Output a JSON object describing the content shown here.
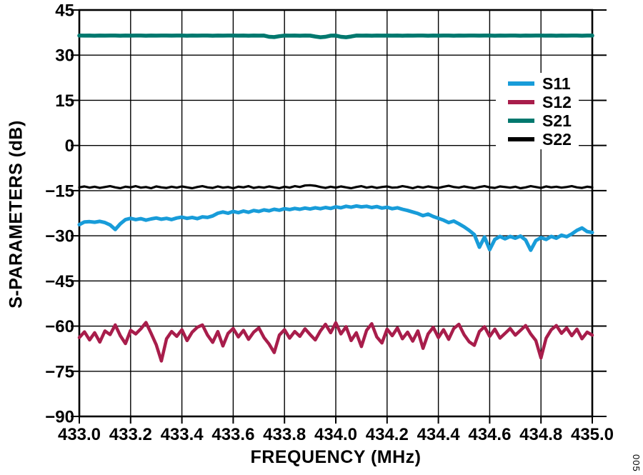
{
  "figure": {
    "code": "005",
    "background": "#ffffff",
    "foreground": "#000000"
  },
  "colors": {
    "s11": "#189cd9",
    "s12": "#a81d4b",
    "s21": "#00786e",
    "s22": "#000000",
    "grid": "#000000",
    "frame": "#000000"
  },
  "legend": {
    "position": "upper-right",
    "entries": [
      {
        "label": "S11",
        "color": "#189cd9"
      },
      {
        "label": "S12",
        "color": "#a81d4b"
      },
      {
        "label": "S21",
        "color": "#00786e"
      },
      {
        "label": "S22",
        "color": "#000000"
      }
    ]
  },
  "chart_data": {
    "type": "line",
    "title": "",
    "xlabel": "FREQUENCY (MHz)",
    "ylabel": "S-PARAMETERS (dB)",
    "xlim": [
      433.0,
      435.0
    ],
    "ylim": [
      -90,
      45
    ],
    "grid": true,
    "legend_position": "upper right",
    "x_ticks": [
      433.0,
      433.2,
      433.4,
      433.6,
      433.8,
      434.0,
      434.2,
      434.4,
      434.6,
      434.8,
      435.0
    ],
    "x_tick_labels": [
      "433.0",
      "433.2",
      "433.4",
      "433.6",
      "433.8",
      "434.0",
      "434.2",
      "434.4",
      "434.6",
      "434.8",
      "435.0"
    ],
    "y_ticks": [
      45,
      30,
      15,
      0,
      -15,
      -30,
      -45,
      -60,
      -75,
      -90
    ],
    "y_tick_labels": [
      "45",
      "30",
      "15",
      "0",
      "−15",
      "−30",
      "−45",
      "−60",
      "−75",
      "−90"
    ],
    "x_start": 433.0,
    "x_step": 0.02,
    "series": [
      {
        "name": "S11",
        "color": "#189cd9",
        "stroke_width": 5,
        "values": [
          -26.3,
          -25.4,
          -25.3,
          -25.5,
          -25.2,
          -25.6,
          -26.4,
          -27.9,
          -26.0,
          -24.6,
          -24.2,
          -24.6,
          -24.3,
          -24.8,
          -24.4,
          -24.1,
          -24.5,
          -24.2,
          -24.6,
          -24.1,
          -23.8,
          -24.2,
          -23.9,
          -24.3,
          -23.7,
          -23.9,
          -23.4,
          -22.5,
          -22.1,
          -22.5,
          -21.9,
          -22.3,
          -21.8,
          -22.2,
          -21.6,
          -21.9,
          -21.4,
          -21.7,
          -21.2,
          -21.5,
          -21.0,
          -21.3,
          -20.9,
          -21.2,
          -20.8,
          -21.1,
          -20.7,
          -21.0,
          -20.6,
          -20.9,
          -20.4,
          -20.7,
          -20.2,
          -20.5,
          -20.1,
          -20.4,
          -20.2,
          -20.6,
          -20.3,
          -20.8,
          -20.5,
          -21.0,
          -20.7,
          -21.2,
          -21.6,
          -22.1,
          -22.6,
          -23.3,
          -22.8,
          -23.6,
          -24.2,
          -24.8,
          -25.6,
          -25.1,
          -26.0,
          -27.0,
          -28.2,
          -29.6,
          -33.8,
          -30.4,
          -34.6,
          -31.2,
          -30.2,
          -31.0,
          -30.2,
          -30.8,
          -30.1,
          -31.4,
          -34.8,
          -31.6,
          -30.6,
          -31.2,
          -30.2,
          -30.8,
          -29.8,
          -30.3,
          -29.4,
          -28.2,
          -27.4,
          -28.6,
          -28.9
        ]
      },
      {
        "name": "S12",
        "color": "#a81d4b",
        "stroke_width": 4.5,
        "values": [
          -63.8,
          -61.9,
          -64.6,
          -62.2,
          -65.3,
          -61.6,
          -62.8,
          -59.6,
          -63.2,
          -65.8,
          -61.4,
          -62.6,
          -60.9,
          -58.8,
          -62.4,
          -66.2,
          -71.6,
          -64.2,
          -61.8,
          -63.4,
          -61.2,
          -64.8,
          -62.0,
          -60.4,
          -59.6,
          -63.0,
          -65.4,
          -61.8,
          -66.6,
          -62.4,
          -60.8,
          -63.6,
          -61.4,
          -64.4,
          -62.0,
          -60.6,
          -63.8,
          -66.0,
          -68.8,
          -63.0,
          -61.2,
          -64.0,
          -61.8,
          -63.4,
          -60.9,
          -62.8,
          -64.6,
          -61.6,
          -59.4,
          -62.2,
          -58.9,
          -62.6,
          -60.2,
          -64.8,
          -62.2,
          -66.8,
          -61.4,
          -59.2,
          -63.6,
          -65.6,
          -61.0,
          -63.2,
          -60.6,
          -64.2,
          -62.0,
          -65.0,
          -61.6,
          -67.4,
          -62.6,
          -60.4,
          -63.8,
          -61.2,
          -64.4,
          -60.8,
          -59.4,
          -62.8,
          -65.2,
          -66.4,
          -61.8,
          -60.2,
          -63.4,
          -61.0,
          -64.0,
          -62.4,
          -60.8,
          -63.0,
          -61.4,
          -59.8,
          -62.6,
          -64.8,
          -70.6,
          -64.0,
          -61.2,
          -59.8,
          -62.4,
          -60.6,
          -63.2,
          -61.0,
          -64.2,
          -62.0,
          -63.0
        ]
      },
      {
        "name": "S21",
        "color": "#00786e",
        "stroke_width": 5.5,
        "values": [
          36.5,
          36.48,
          36.5,
          36.46,
          36.5,
          36.48,
          36.5,
          36.5,
          36.46,
          36.5,
          36.48,
          36.5,
          36.5,
          36.46,
          36.5,
          36.48,
          36.5,
          36.5,
          36.48,
          36.5,
          36.5,
          36.46,
          36.5,
          36.48,
          36.5,
          36.5,
          36.46,
          36.5,
          36.48,
          36.5,
          36.5,
          36.48,
          36.5,
          36.46,
          36.5,
          36.48,
          36.5,
          36.1,
          36.0,
          36.3,
          36.5,
          36.48,
          36.5,
          36.46,
          36.5,
          36.48,
          36.2,
          35.95,
          36.1,
          36.48,
          36.5,
          36.1,
          35.95,
          36.2,
          36.5,
          36.48,
          36.5,
          36.46,
          36.5,
          36.48,
          36.5,
          36.48,
          36.5,
          36.46,
          36.5,
          36.48,
          36.5,
          36.5,
          36.46,
          36.5,
          36.48,
          36.5,
          36.5,
          36.46,
          36.5,
          36.48,
          36.5,
          36.5,
          36.48,
          36.5,
          36.5,
          36.46,
          36.5,
          36.48,
          36.5,
          36.5,
          36.46,
          36.5,
          36.48,
          36.5,
          36.5,
          36.48,
          36.5,
          36.46,
          36.5,
          36.48,
          36.5,
          36.5,
          36.46,
          36.5,
          36.5
        ]
      },
      {
        "name": "S22",
        "color": "#000000",
        "stroke_width": 3.2,
        "values": [
          -13.9,
          -13.6,
          -14.0,
          -13.7,
          -14.1,
          -13.8,
          -13.5,
          -13.9,
          -14.2,
          -13.7,
          -13.9,
          -13.5,
          -14.0,
          -13.8,
          -14.2,
          -13.6,
          -13.9,
          -14.1,
          -13.7,
          -14.0,
          -13.6,
          -13.9,
          -14.2,
          -13.8,
          -13.5,
          -13.9,
          -14.1,
          -13.6,
          -14.0,
          -13.8,
          -14.2,
          -13.7,
          -13.9,
          -13.5,
          -14.1,
          -13.8,
          -14.0,
          -13.6,
          -13.9,
          -14.2,
          -13.7,
          -14.0,
          -13.5,
          -13.8,
          -13.3,
          -13.2,
          -13.4,
          -13.8,
          -14.1,
          -13.7,
          -14.0,
          -13.6,
          -13.9,
          -14.2,
          -13.8,
          -13.5,
          -14.0,
          -13.7,
          -14.1,
          -13.8,
          -13.6,
          -14.0,
          -13.9,
          -13.5,
          -13.8,
          -14.2,
          -13.7,
          -14.0,
          -13.6,
          -13.9,
          -14.1,
          -13.7,
          -13.4,
          -13.8,
          -14.0,
          -13.6,
          -13.9,
          -14.2,
          -13.8,
          -13.5,
          -13.9,
          -14.1,
          -13.6,
          -13.8,
          -14.0,
          -13.7,
          -14.2,
          -13.9,
          -13.5,
          -13.8,
          -14.1,
          -13.6,
          -13.9,
          -13.7,
          -14.0,
          -13.8,
          -13.5,
          -13.9,
          -14.1,
          -13.7,
          -13.9
        ]
      }
    ]
  }
}
